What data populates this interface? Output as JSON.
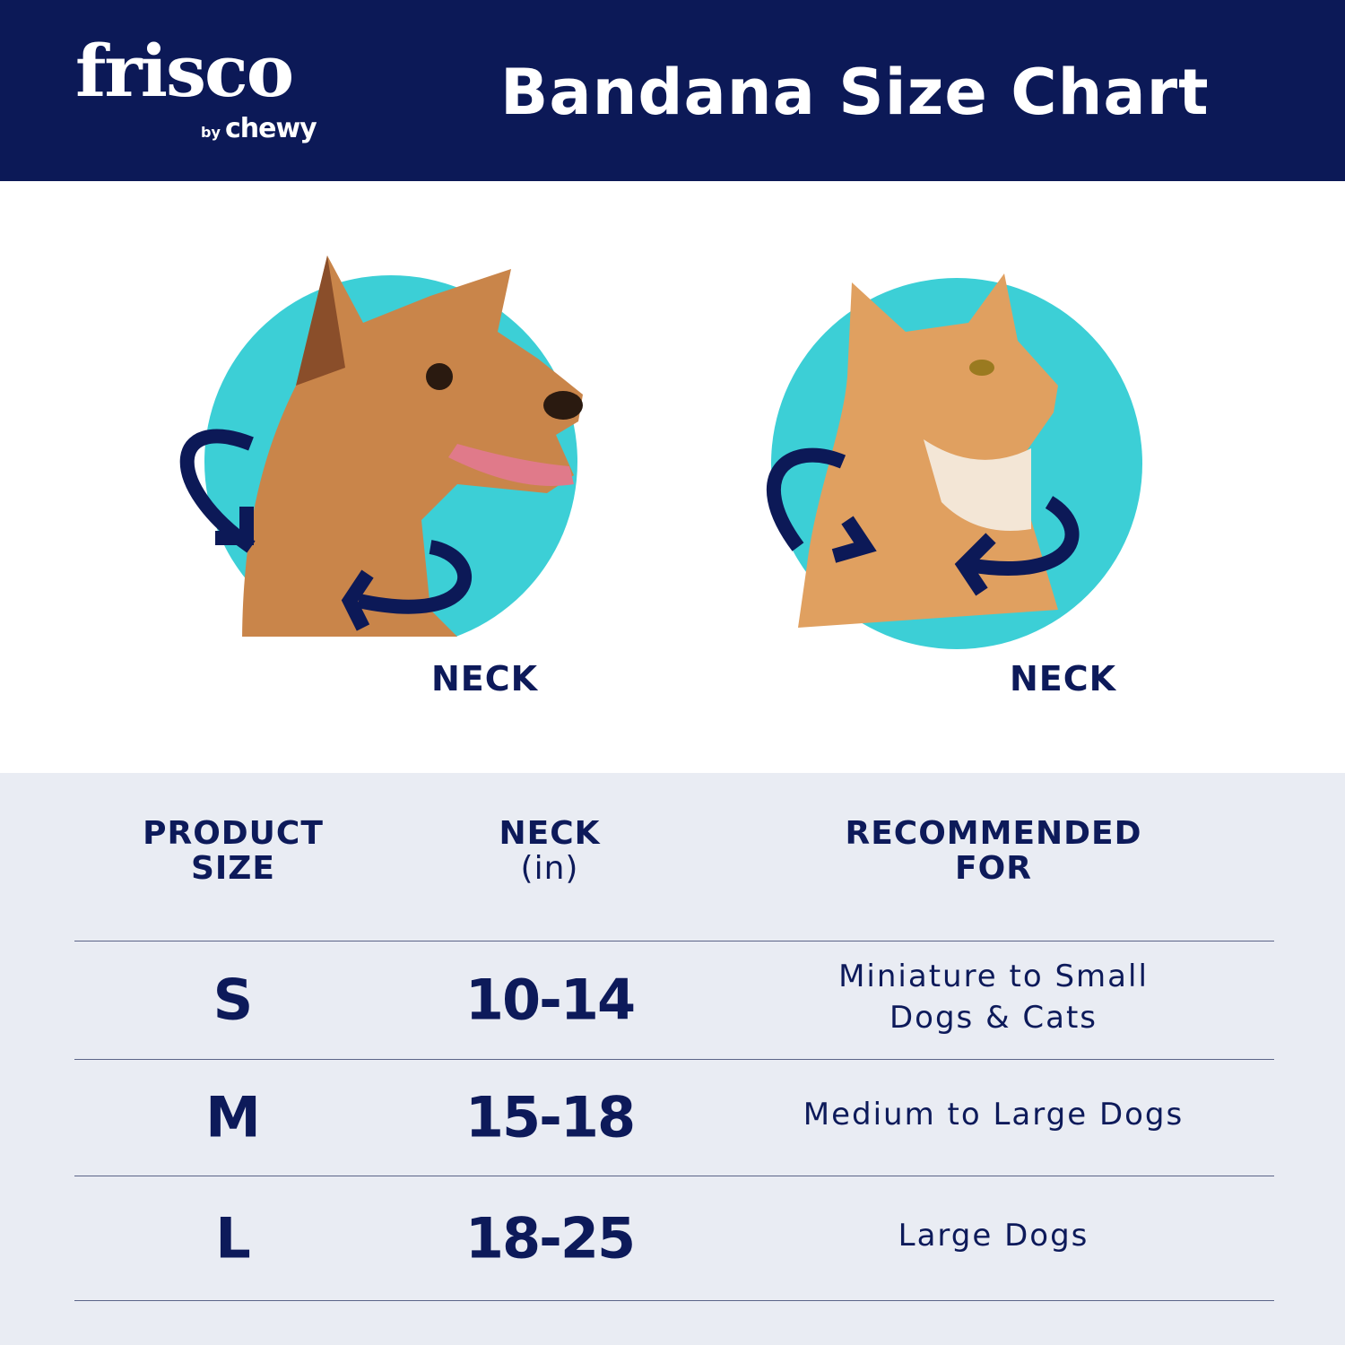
{
  "header": {
    "brand": "frisco",
    "brand_sub_by": "by",
    "brand_sub": "chewy",
    "title": "Bandana Size Chart"
  },
  "illustrations": [
    {
      "animal": "dog",
      "label": "NECK"
    },
    {
      "animal": "cat",
      "label": "NECK"
    }
  ],
  "colors": {
    "navy": "#0c1957",
    "teal": "#3ccfd6",
    "table_bg": "#e9ecf3"
  },
  "table": {
    "headers": [
      {
        "line1": "PRODUCT",
        "line2": "SIZE"
      },
      {
        "line1": "NECK",
        "line2": "(in)"
      },
      {
        "line1": "RECOMMENDED",
        "line2": "FOR"
      }
    ],
    "rows": [
      {
        "size": "S",
        "neck": "10-14",
        "rec_line1": "Miniature to Small",
        "rec_line2": "Dogs & Cats"
      },
      {
        "size": "M",
        "neck": "15-18",
        "rec_line1": "Medium to Large Dogs",
        "rec_line2": ""
      },
      {
        "size": "L",
        "neck": "18-25",
        "rec_line1": "Large Dogs",
        "rec_line2": ""
      }
    ]
  }
}
